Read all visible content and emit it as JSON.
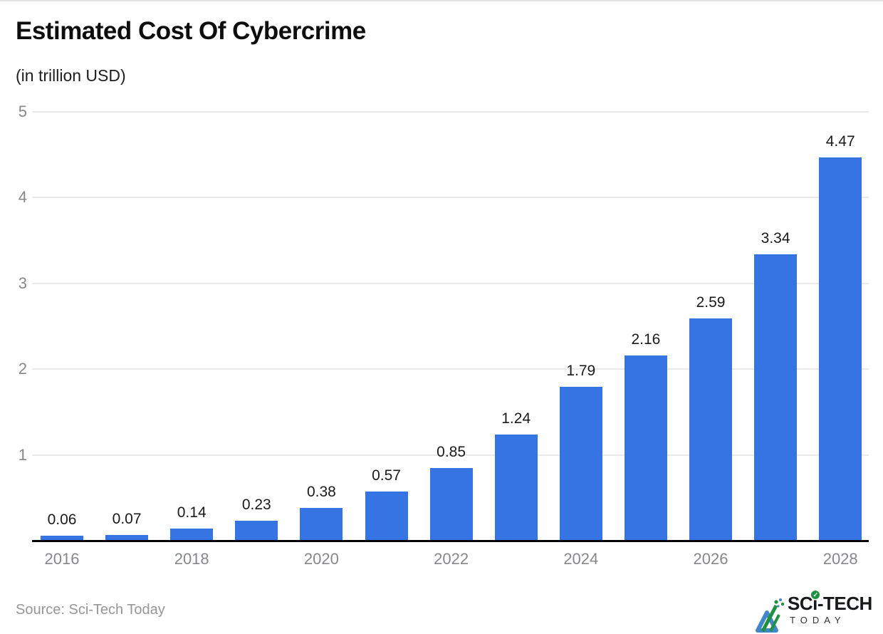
{
  "header": {
    "title": "Estimated Cost Of Cybercrime",
    "subtitle": "(in trillion USD)"
  },
  "chart_data": {
    "type": "bar",
    "categories": [
      "2016",
      "2017",
      "2018",
      "2019",
      "2020",
      "2021",
      "2022",
      "2023",
      "2024",
      "2025",
      "2026",
      "2027",
      "2028"
    ],
    "values": [
      0.06,
      0.07,
      0.14,
      0.23,
      0.38,
      0.57,
      0.85,
      1.24,
      1.79,
      2.16,
      2.59,
      3.34,
      4.47
    ],
    "bar_labels": [
      "0.06",
      "0.07",
      "0.14",
      "0.23",
      "0.38",
      "0.57",
      "0.85",
      "1.24",
      "1.79",
      "2.16",
      "2.59",
      "3.34",
      "4.47"
    ],
    "title": "Estimated Cost Of Cybercrime",
    "subtitle_unit": "(in trillion USD)",
    "xlabel": "",
    "ylabel": "",
    "ylim": [
      0,
      5
    ],
    "yticks": [
      1,
      2,
      3,
      4,
      5
    ],
    "x_tick_labels": [
      "2016",
      "2018",
      "2020",
      "2022",
      "2024",
      "2026",
      "2028"
    ],
    "grid": true,
    "legend": false,
    "bar_color": "#3674e4",
    "axis_color": "#000000",
    "gridline_color": "#eaeaea",
    "tick_label_color": "#85878a",
    "value_label_color": "#1a1a1a"
  },
  "footer": {
    "source": "Source: Sci-Tech Today",
    "logo": {
      "part1": "SC",
      "dotless_i": "ı",
      "part2": "-TECH",
      "line2": "TODAY",
      "check_icon": "✓",
      "accent_green": "#1e9140",
      "accent_blue": "#4187c8",
      "text_color": "#17191c"
    }
  }
}
